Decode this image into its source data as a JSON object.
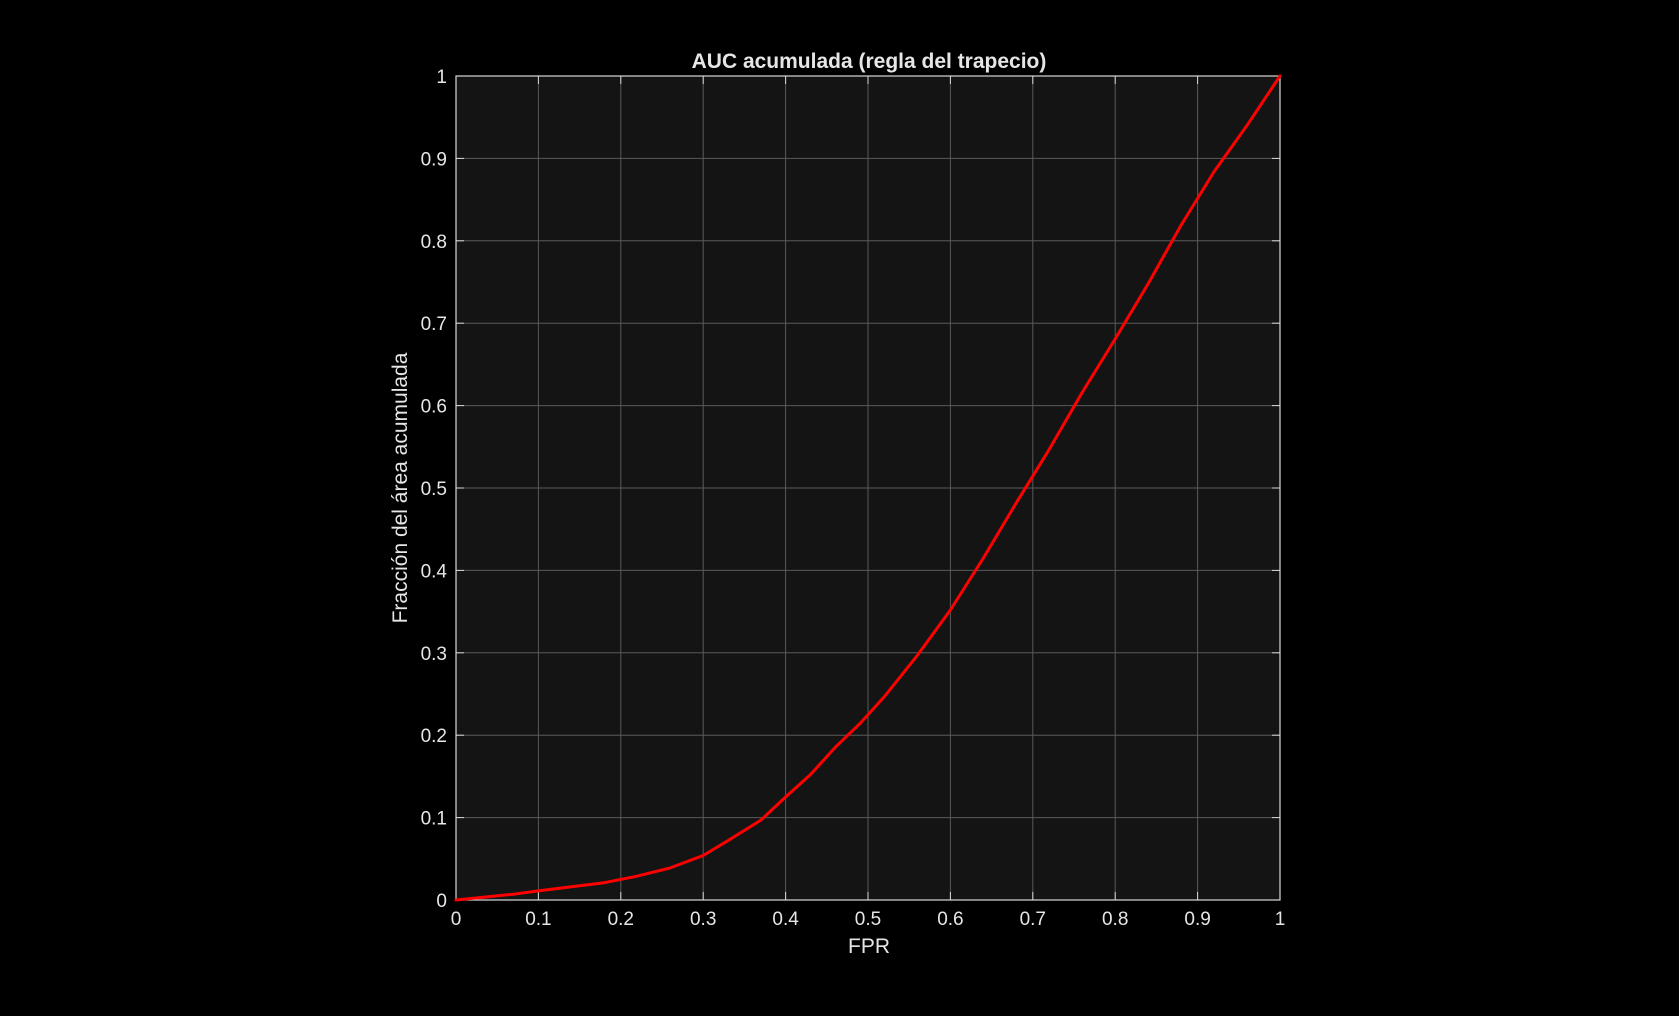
{
  "chart_data": {
    "type": "line",
    "title": "AUC acumulada (regla del trapecio)",
    "xlabel": "FPR",
    "ylabel": "Fracción del área acumulada",
    "xlim": [
      0,
      1
    ],
    "ylim": [
      0,
      1
    ],
    "xticks": [
      "0",
      "0.1",
      "0.2",
      "0.3",
      "0.4",
      "0.5",
      "0.6",
      "0.7",
      "0.8",
      "0.9",
      "1"
    ],
    "yticks": [
      "0",
      "0.1",
      "0.2",
      "0.3",
      "0.4",
      "0.5",
      "0.6",
      "0.7",
      "0.8",
      "0.9",
      "1"
    ],
    "grid": true,
    "series": [
      {
        "color": "#ff0000",
        "x": [
          0,
          0.03,
          0.07,
          0.1,
          0.14,
          0.18,
          0.22,
          0.26,
          0.3,
          0.33,
          0.37,
          0.4,
          0.43,
          0.46,
          0.49,
          0.52,
          0.56,
          0.6,
          0.64,
          0.68,
          0.72,
          0.76,
          0.8,
          0.84,
          0.88,
          0.92,
          0.96,
          1.0
        ],
        "y": [
          0,
          0.003,
          0.007,
          0.011,
          0.016,
          0.021,
          0.029,
          0.039,
          0.054,
          0.072,
          0.097,
          0.125,
          0.152,
          0.185,
          0.214,
          0.247,
          0.297,
          0.352,
          0.415,
          0.482,
          0.547,
          0.616,
          0.681,
          0.748,
          0.819,
          0.884,
          0.94,
          1.0
        ]
      }
    ]
  },
  "colors": {
    "figure_background": "#000000",
    "axes_background": "#141414",
    "grid": "#5a5a5a",
    "axis": "#d9d9d9",
    "text": "#e6e6e6"
  }
}
